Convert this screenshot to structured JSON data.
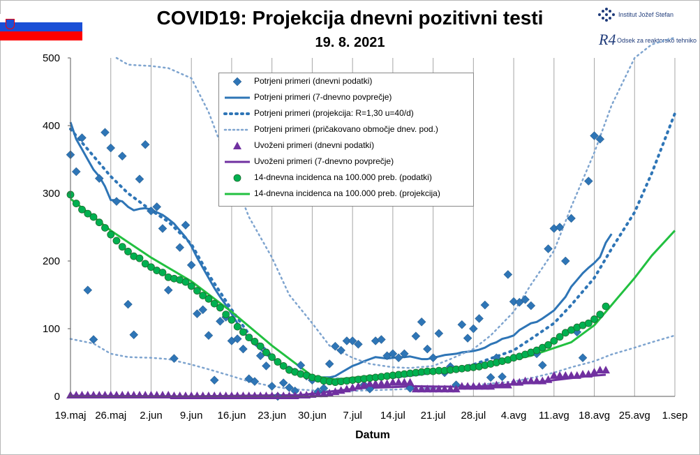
{
  "header": {
    "title": "COVID19: Projekcija dnevni pozitivni testi",
    "date": "19. 8. 2021"
  },
  "institute": {
    "name": "Institut Jožef Stefan",
    "logo_text": "R4",
    "department": "Odsek za reaktorsko tehniko"
  },
  "chart_data": {
    "type": "line",
    "title": "COVID19: Projekcija dnevni pozitivni testi",
    "subtitle": "19. 8. 2021",
    "xlabel": "Datum",
    "ylabel": "",
    "ylim": [
      0,
      500
    ],
    "yticks": [
      0,
      100,
      200,
      300,
      400,
      500
    ],
    "xlim": [
      "2021-05-19",
      "2021-09-01"
    ],
    "xticks": [
      "19.maj",
      "26.maj",
      "2.jun",
      "9.jun",
      "16.jun",
      "23.jun",
      "30.jun",
      "7.jul",
      "14.jul",
      "21.jul",
      "28.jul",
      "4.avg",
      "11.avg",
      "18.avg",
      "25.avg",
      "1.sep"
    ],
    "grid": "vertical",
    "legend_position": "top-center",
    "series": [
      {
        "name": "Potrjeni primeri (dnevni podatki)",
        "style": "diamond-markers",
        "color": "#2e75b6",
        "x_start": "2021-05-19",
        "step_days": 1,
        "values": [
          357,
          332,
          382,
          157,
          84,
          322,
          390,
          367,
          288,
          355,
          136,
          91,
          321,
          372,
          274,
          280,
          248,
          157,
          56,
          220,
          253,
          194,
          122,
          128,
          90,
          24,
          111,
          117,
          82,
          85,
          70,
          26,
          22,
          60,
          45,
          15,
          0,
          20,
          13,
          8,
          46,
          30,
          24,
          7,
          12,
          48,
          74,
          68,
          82,
          82,
          77,
          17,
          11,
          82,
          84,
          60,
          63,
          57,
          63,
          12,
          89,
          110,
          70,
          57,
          93,
          35,
          44,
          17,
          106,
          86,
          100,
          115,
          135,
          28,
          57,
          29,
          180,
          140,
          139,
          143,
          134,
          63,
          46,
          218,
          248,
          250,
          200,
          263,
          95,
          57,
          318,
          385,
          380
        ]
      },
      {
        "name": "Potrjeni primeri (7-dnevno povprečje)",
        "style": "solid-line",
        "color": "#2e75b6",
        "x_start": "2021-05-19",
        "step_days": 1,
        "values": [
          405,
          380,
          365,
          350,
          335,
          325,
          310,
          290,
          290,
          288,
          280,
          275,
          277,
          278,
          276,
          272,
          268,
          262,
          255,
          245,
          235,
          222,
          205,
          190,
          175,
          160,
          147,
          135,
          122,
          108,
          96,
          86,
          77,
          70,
          62,
          56,
          50,
          45,
          42,
          39,
          35,
          31,
          29,
          28,
          28,
          28,
          30,
          35,
          40,
          45,
          48,
          52,
          55,
          58,
          57,
          56,
          57,
          58,
          58,
          59,
          57,
          55,
          55,
          57,
          59,
          61,
          62,
          63,
          65,
          66,
          67,
          69,
          72,
          77,
          80,
          85,
          87,
          90,
          98,
          103,
          108,
          110,
          115,
          121,
          127,
          137,
          147,
          162,
          172,
          182,
          190,
          197,
          206,
          227,
          240
        ]
      },
      {
        "name": "Potrjeni primeri (projekcija: R=1,30 u=40/d)",
        "style": "dotted-line",
        "color": "#2e75b6",
        "x": [
          0,
          7,
          10,
          14,
          17,
          21,
          24,
          28,
          31,
          35,
          38,
          42,
          45,
          49,
          52,
          56,
          59,
          63,
          66,
          70,
          73,
          77,
          80,
          84,
          87,
          91,
          94,
          98,
          101,
          105
        ],
        "values": [
          395,
          325,
          300,
          275,
          258,
          225,
          180,
          128,
          92,
          60,
          43,
          30,
          26,
          25,
          26,
          28,
          31,
          35,
          40,
          47,
          56,
          68,
          85,
          108,
          135,
          175,
          218,
          272,
          330,
          418
        ]
      },
      {
        "name": "Potrjeni primeri (pričakovano območje dnev. pod.)",
        "style": "dotted-line",
        "color": "#7ea4cf",
        "x": [
          8,
          10,
          14,
          17,
          21,
          24,
          28,
          31,
          35,
          38,
          42,
          45,
          49,
          52,
          56,
          59,
          63,
          66,
          70,
          73,
          77,
          80,
          84,
          87,
          91,
          94,
          98,
          101,
          105,
          0,
          4,
          7,
          10,
          14,
          17,
          21,
          24,
          28,
          31,
          35,
          38,
          42,
          45,
          49,
          52,
          56,
          59,
          63,
          66,
          70,
          73,
          77,
          80,
          84,
          87,
          91,
          94,
          98,
          101,
          105
        ],
        "values": [
          500,
          490,
          488,
          485,
          470,
          420,
          330,
          265,
          205,
          150,
          108,
          75,
          57,
          48,
          43,
          42,
          45,
          55,
          70,
          90,
          125,
          165,
          215,
          280,
          360,
          430,
          500,
          520,
          530,
          85,
          78,
          63,
          58,
          57,
          55,
          47,
          40,
          30,
          22,
          15,
          11,
          9,
          8,
          8,
          9,
          10,
          11,
          12,
          14,
          16,
          19,
          22,
          27,
          35,
          43,
          52,
          62,
          72,
          80,
          90
        ]
      },
      {
        "name": "Uvoženi primeri (dnevni podatki)",
        "style": "triangle-markers",
        "color": "#7030a0",
        "x_start": "2021-05-19",
        "step_days": 1,
        "values": [
          1,
          1,
          1,
          1,
          1,
          1,
          1,
          1,
          1,
          1,
          1,
          1,
          1,
          1,
          1,
          1,
          1,
          1,
          0,
          0,
          0,
          0,
          0,
          0,
          0,
          0,
          0,
          0,
          0,
          0,
          0,
          0,
          0,
          0,
          0,
          0,
          0,
          0,
          0,
          0,
          1,
          1,
          2,
          3,
          3,
          4,
          6,
          8,
          10,
          12,
          14,
          16,
          18,
          18,
          18,
          18,
          20,
          20,
          20,
          20,
          10,
          10,
          10,
          10,
          10,
          10,
          10,
          10,
          14,
          14,
          14,
          14,
          14,
          14,
          16,
          16,
          16,
          20,
          20,
          22,
          22,
          22,
          22,
          24,
          30,
          30,
          30,
          30,
          30,
          32,
          32,
          35,
          38,
          38
        ]
      },
      {
        "name": "Uvoženi primeri (7-dnevno povprečje)",
        "style": "solid-line",
        "color": "#7030a0",
        "x": [
          0,
          20,
          40,
          50,
          60,
          70,
          80,
          90,
          93
        ],
        "values": [
          1,
          0,
          2,
          12,
          15,
          14,
          20,
          30,
          32
        ]
      },
      {
        "name": "14-dnevna incidenca na 100.000 preb. (podatki)",
        "style": "circle-markers",
        "color": "#00b050",
        "x_start": "2021-05-19",
        "step_days": 1,
        "values": [
          298,
          285,
          276,
          270,
          265,
          257,
          249,
          239,
          230,
          221,
          214,
          207,
          204,
          196,
          191,
          186,
          183,
          176,
          174,
          172,
          169,
          163,
          156,
          149,
          144,
          137,
          131,
          121,
          113,
          103,
          95,
          87,
          81,
          74,
          65,
          58,
          51,
          45,
          39,
          36,
          33,
          31,
          28,
          26,
          23,
          22,
          21,
          22,
          23,
          24,
          25,
          26,
          27,
          28,
          29,
          30,
          31,
          32,
          33,
          34,
          35,
          36,
          37,
          37,
          38,
          38,
          39,
          40,
          41,
          42,
          43,
          44,
          46,
          48,
          50,
          52,
          54,
          57,
          59,
          62,
          65,
          68,
          72,
          76,
          82,
          88,
          94,
          98,
          102,
          105,
          108,
          114,
          121,
          133
        ]
      },
      {
        "name": "14-dnevna incidenca na 100.000 preb. (projekcija)",
        "style": "solid-line",
        "color": "#22c040",
        "x": [
          0,
          7,
          14,
          21,
          28,
          35,
          42,
          46,
          52,
          59,
          66,
          73,
          80,
          87,
          91,
          94,
          98,
          101,
          105
        ],
        "values": [
          292,
          245,
          205,
          170,
          125,
          75,
          30,
          25,
          30,
          34,
          40,
          48,
          60,
          80,
          105,
          135,
          175,
          208,
          245
        ]
      }
    ]
  },
  "legend": {
    "items": [
      {
        "label": "Potrjeni primeri (dnevni podatki)",
        "icon": "diamond-marker"
      },
      {
        "label": "Potrjeni primeri (7-dnevno povprečje)",
        "icon": "solid-blue-line"
      },
      {
        "label": "Potrjeni primeri (projekcija: R=1,30 u=40/d)",
        "icon": "dotted-blue-line"
      },
      {
        "label": "Potrjeni primeri (pričakovano območje dnev. pod.)",
        "icon": "dotted-lightblue-line"
      },
      {
        "label": "Uvoženi primeri (dnevni podatki)",
        "icon": "triangle-marker"
      },
      {
        "label": "Uvoženi primeri (7-dnevno povprečje)",
        "icon": "solid-purple-line"
      },
      {
        "label": "14-dnevna incidenca na 100.000 preb. (podatki)",
        "icon": "circle-marker"
      },
      {
        "label": "14-dnevna incidenca na 100.000 preb. (projekcija)",
        "icon": "solid-green-line"
      }
    ]
  }
}
